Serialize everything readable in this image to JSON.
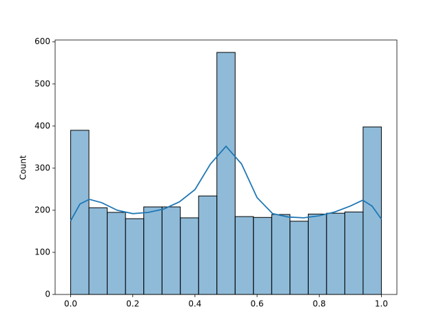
{
  "chart_data": {
    "type": "histogram",
    "y_label": "Count",
    "bins": [
      0,
      0.0588,
      0.1176,
      0.1765,
      0.2353,
      0.2941,
      0.3529,
      0.4118,
      0.4706,
      0.5294,
      0.5882,
      0.6471,
      0.7059,
      0.7647,
      0.8235,
      0.8824,
      0.9412,
      1.0
    ],
    "values": [
      390,
      206,
      195,
      180,
      208,
      208,
      182,
      234,
      575,
      185,
      183,
      190,
      174,
      191,
      193,
      196,
      398
    ],
    "color": "#1f77b4",
    "kde": {
      "x": [
        0,
        0.03,
        0.06,
        0.1,
        0.15,
        0.2,
        0.25,
        0.3,
        0.35,
        0.4,
        0.45,
        0.5,
        0.55,
        0.6,
        0.65,
        0.7,
        0.75,
        0.8,
        0.85,
        0.9,
        0.94,
        0.97,
        1.0
      ],
      "values": [
        175,
        215,
        226,
        218,
        200,
        192,
        195,
        203,
        220,
        249,
        310,
        352,
        310,
        230,
        192,
        184,
        182,
        187,
        196,
        210,
        224,
        210,
        179
      ],
      "color": "#1f77b4"
    },
    "xlim": [
      -0.05,
      1.05
    ],
    "ylim": [
      0,
      604.5
    ],
    "xticks": [
      {
        "value": 0,
        "label": "0.0"
      },
      {
        "value": 0.2,
        "label": "0.2"
      },
      {
        "value": 0.4,
        "label": "0.4"
      },
      {
        "value": 0.6,
        "label": "0.6"
      },
      {
        "value": 0.8,
        "label": "0.8"
      },
      {
        "value": 1,
        "label": "1.0"
      }
    ],
    "yticks": [
      0,
      100,
      200,
      300,
      400,
      500,
      600
    ]
  }
}
